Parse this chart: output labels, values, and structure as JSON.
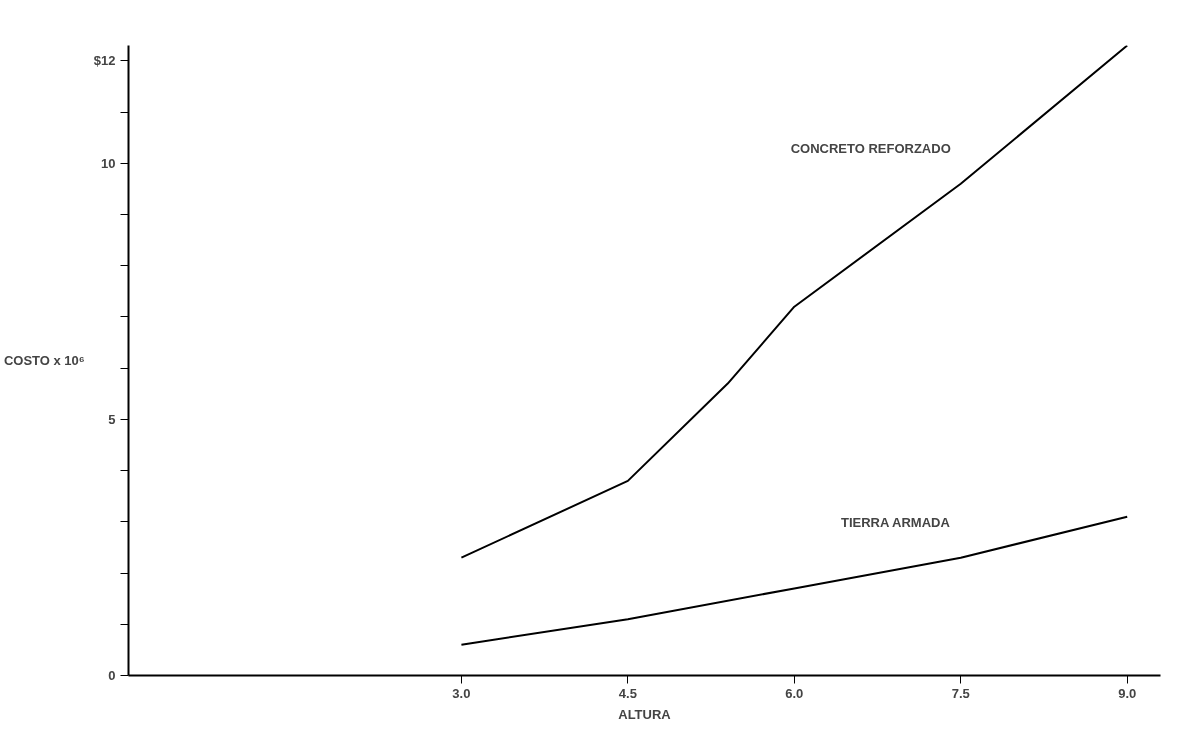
{
  "chart_data": {
    "type": "line",
    "xlabel": "ALTURA",
    "ylabel": "COSTO x 10⁶",
    "xlim": [
      0,
      9.3
    ],
    "ylim": [
      0,
      12.3
    ],
    "xticks": [
      {
        "value": 3,
        "label": "3.0"
      },
      {
        "value": 4.5,
        "label": "4.5"
      },
      {
        "value": 6,
        "label": "6.0"
      },
      {
        "value": 7.5,
        "label": "7.5"
      },
      {
        "value": 9,
        "label": "9.0"
      }
    ],
    "yticks": [
      0,
      {
        "value": 1,
        "label": null
      },
      {
        "value": 2,
        "label": null
      },
      {
        "value": 3,
        "label": null
      },
      {
        "value": 4,
        "label": null
      },
      5,
      {
        "value": 6,
        "label": null
      },
      {
        "value": 7,
        "label": null
      },
      {
        "value": 8,
        "label": null
      },
      {
        "value": 9,
        "label": null
      },
      10,
      {
        "value": 11,
        "label": null
      },
      {
        "value": 12,
        "label": "$12"
      }
    ],
    "grid": false,
    "legend": false,
    "marker": "none",
    "line_style": "solid",
    "series": [
      {
        "name": "CONCRETO REFORZADO",
        "color": "#000000",
        "x": [
          3.0,
          4.5,
          5.4,
          6.0,
          7.5,
          9.0
        ],
        "values": [
          2.3,
          3.8,
          5.7,
          7.2,
          9.6,
          12.3
        ]
      },
      {
        "name": "TIERRA ARMADA",
        "color": "#000000",
        "x": [
          3.0,
          4.5,
          6.0,
          7.5,
          9.0
        ],
        "values": [
          0.6,
          1.1,
          1.7,
          2.3,
          3.1
        ]
      }
    ]
  }
}
